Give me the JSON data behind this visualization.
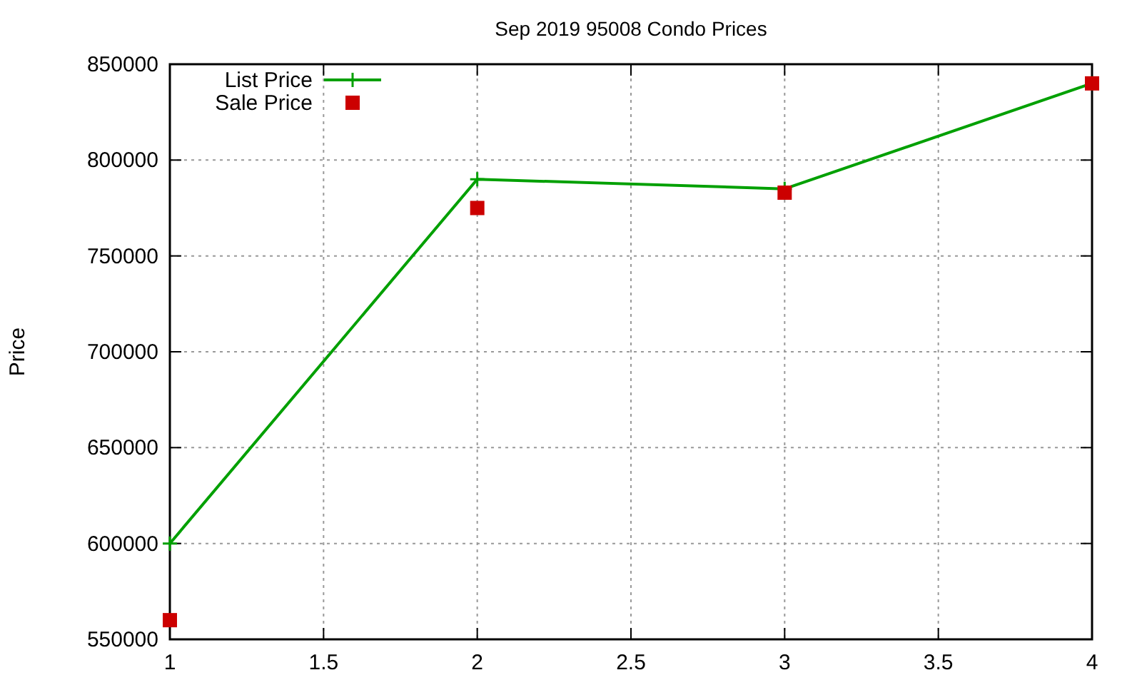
{
  "chart_data": {
    "type": "line",
    "title": "Sep 2019 95008 Condo Prices",
    "ylabel": "Price",
    "x": [
      1,
      2,
      3,
      4
    ],
    "series": [
      {
        "name": "List Price",
        "marker": "cross",
        "color": "#00a000",
        "values": [
          600000,
          790000,
          785000,
          840000
        ]
      },
      {
        "name": "Sale Price",
        "type": "scatter",
        "marker": "square",
        "color": "#cc0000",
        "values": [
          560000,
          775000,
          783000,
          840000
        ]
      }
    ],
    "xlim": [
      1,
      4
    ],
    "xticks": [
      1,
      1.5,
      2,
      2.5,
      3,
      3.5,
      4
    ],
    "ylim": [
      550000,
      850000
    ],
    "yticks": [
      550000,
      600000,
      650000,
      700000,
      750000,
      800000,
      850000
    ],
    "grid": true,
    "legend": "top left"
  }
}
